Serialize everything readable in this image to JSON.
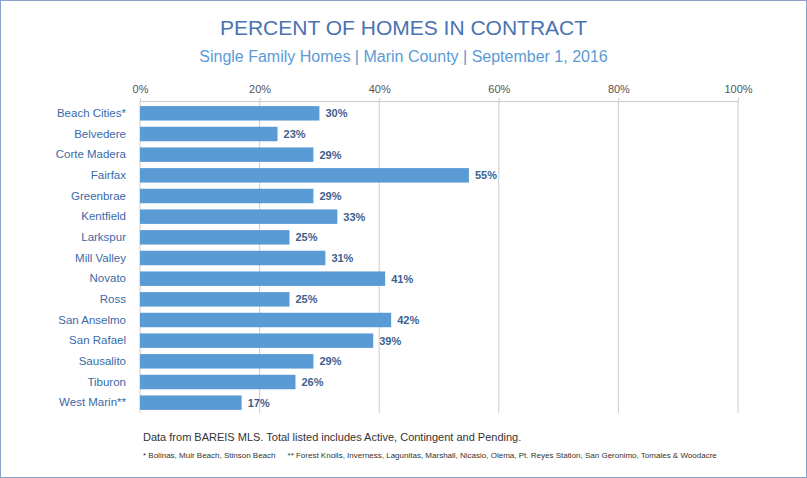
{
  "chart_data": {
    "type": "bar",
    "orientation": "horizontal",
    "title": "PERCENT OF HOMES IN CONTRACT",
    "subtitle": "Single Family Homes | Marin County | September 1, 2016",
    "categories": [
      "Beach Cities*",
      "Belvedere",
      "Corte Madera",
      "Fairfax",
      "Greenbrae",
      "Kentfield",
      "Larkspur",
      "Mill Valley",
      "Novato",
      "Ross",
      "San Anselmo",
      "San Rafael",
      "Sausalito",
      "Tiburon",
      "West Marin**"
    ],
    "values": [
      30,
      23,
      29,
      55,
      29,
      33,
      25,
      31,
      41,
      25,
      42,
      39,
      29,
      26,
      17
    ],
    "value_labels": [
      "30%",
      "23%",
      "29%",
      "55%",
      "29%",
      "33%",
      "25%",
      "31%",
      "41%",
      "25%",
      "42%",
      "39%",
      "29%",
      "26%",
      "17%"
    ],
    "color": "#5b9bd5",
    "xlim": [
      0,
      100
    ],
    "xticks": [
      {
        "value": 0,
        "label": "0%"
      },
      {
        "value": 20,
        "label": "20%"
      },
      {
        "value": 40,
        "label": "40%"
      },
      {
        "value": 60,
        "label": "60%"
      },
      {
        "value": 80,
        "label": "80%"
      },
      {
        "value": 100,
        "label": "100%"
      }
    ],
    "grid": true,
    "data_labels": true,
    "annotations": [
      "Data from BAREIS MLS. Total listed includes Active, Contingent and Pending.",
      "* Bolinas, Muir Beach, Stinson Beach",
      "** Forest Knolls, Inverness, Lagunitas, Marshall, Nicasio, Olema, Pt. Reyes Station, San Geronimo, Tomales & Woodacre"
    ]
  }
}
